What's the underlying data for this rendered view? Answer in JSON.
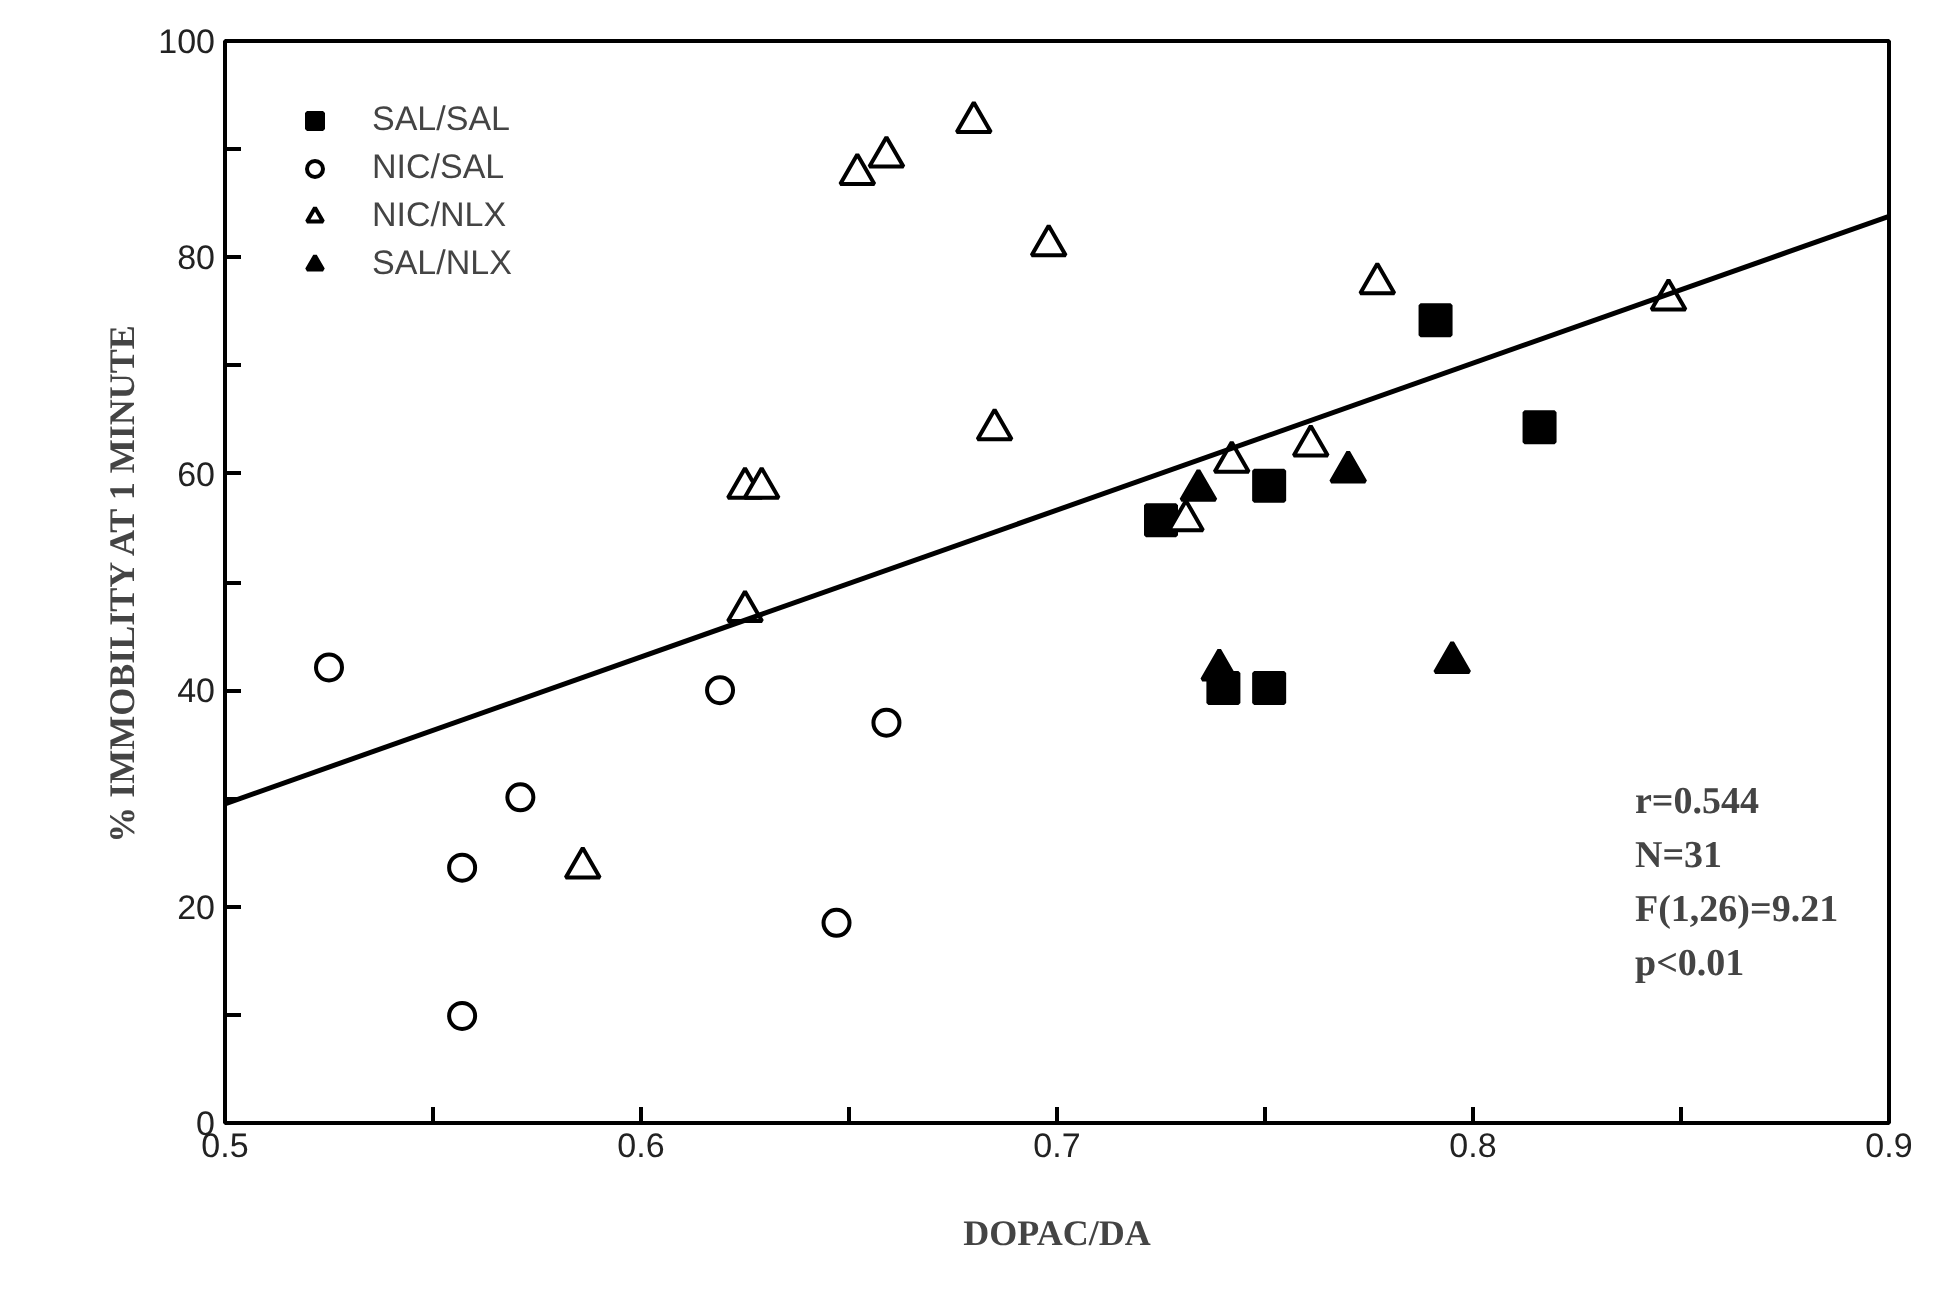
{
  "chart_data": {
    "type": "scatter",
    "xlabel": "DOPAC/DA",
    "ylabel": "% IMMOBILITY AT 1 MINUTE",
    "xlim": [
      0.5,
      0.9
    ],
    "ylim": [
      0,
      100
    ],
    "xticks": [
      0.5,
      {
        "value": 0.55,
        "label": null
      },
      0.6,
      {
        "value": 0.65,
        "label": null
      },
      0.7,
      {
        "value": 0.75,
        "label": null
      },
      0.8,
      {
        "value": 0.85,
        "label": null
      },
      0.9
    ],
    "yticks": [
      0,
      {
        "value": 10,
        "label": null
      },
      20,
      {
        "value": 30,
        "label": null
      },
      40,
      {
        "value": 50,
        "label": null
      },
      60,
      {
        "value": 70,
        "label": null
      },
      80,
      {
        "value": 90,
        "label": null
      },
      100
    ],
    "grid": false,
    "legend": "top left",
    "series": [
      {
        "name": "SAL/SAL",
        "color": "#000000",
        "marker": "square",
        "x": [
          0.725,
          0.751,
          0.74,
          0.751,
          0.791,
          0.816
        ],
        "values": [
          55.7,
          58.9,
          40.2,
          40.2,
          74.2,
          64.3
        ]
      },
      {
        "name": "NIC/SAL",
        "color": "#ffffff",
        "marker": "circle",
        "x": [
          0.525,
          0.619,
          0.659,
          0.571,
          0.557,
          0.647,
          0.557
        ],
        "values": [
          42.1,
          40.0,
          37.0,
          30.1,
          23.6,
          18.5,
          9.9
        ]
      },
      {
        "name": "NIC/NLX",
        "color": "#ffffff",
        "marker": "triangle",
        "x": [
          0.652,
          0.659,
          0.68,
          0.698,
          0.685,
          0.625,
          0.629,
          0.625,
          0.777,
          0.847,
          0.742,
          0.761,
          0.731,
          0.586
        ],
        "values": [
          87.7,
          89.3,
          92.5,
          81.1,
          64.1,
          58.7,
          58.7,
          47.3,
          77.6,
          76.1,
          61.1,
          62.6,
          55.7,
          23.6
        ]
      },
      {
        "name": "SAL/NLX",
        "color": "#000000",
        "marker": "triangle",
        "x": [
          0.734,
          0.77,
          0.739,
          0.795
        ],
        "values": [
          58.5,
          60.2,
          41.9,
          42.6
        ]
      },
      {
        "type": "line",
        "color": "#000000",
        "line_style": "solid",
        "x": [
          0.5,
          0.9
        ],
        "values": [
          29.5,
          83.8
        ]
      }
    ],
    "annotations": [
      "r=0.544",
      "N=31",
      "F(1,26)=9.21",
      "p<0.01"
    ]
  }
}
